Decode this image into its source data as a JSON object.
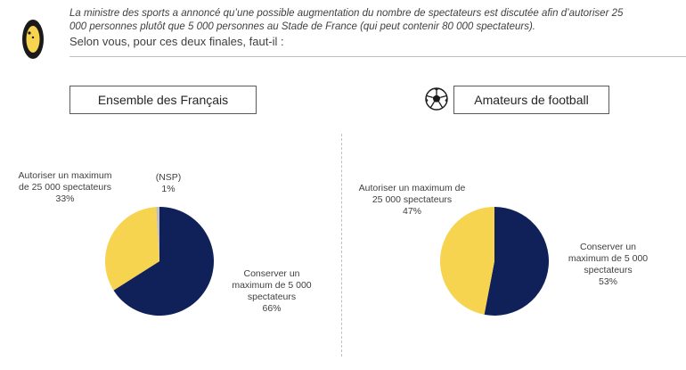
{
  "intro_text": "La ministre des sports a annoncé qu’une possible augmentation du nombre de spectateurs est discutée afin d’autoriser 25 000 personnes plutôt que 5 000 personnes au Stade de France (qui peut contenir 80 000 spectateurs).",
  "question": "Selon vous, pour ces deux finales, faut-il :",
  "colors": {
    "navy": "#0f2158",
    "yellow": "#f6d450",
    "grey": "#bfbfbf"
  },
  "chart_data": [
    {
      "type": "pie",
      "title": "Ensemble des Français",
      "slices": [
        {
          "label": "Conserver un maximum de 5 000 spectateurs",
          "value": 66,
          "value_label": "66%",
          "color": "#0f2158"
        },
        {
          "label": "Autoriser un maximum de 25 000 spectateurs",
          "value": 33,
          "value_label": "33%",
          "color": "#f6d450"
        },
        {
          "label": "(NSP)",
          "value": 1,
          "value_label": "1%",
          "color": "#bfbfbf"
        }
      ]
    },
    {
      "type": "pie",
      "title": "Amateurs de football",
      "slices": [
        {
          "label": "Conserver un maximum de 5 000 spectateurs",
          "value": 53,
          "value_label": "53%",
          "color": "#0f2158"
        },
        {
          "label": "Autoriser un maximum de 25 000 spectateurs",
          "value": 47,
          "value_label": "47%",
          "color": "#f6d450"
        }
      ]
    }
  ]
}
